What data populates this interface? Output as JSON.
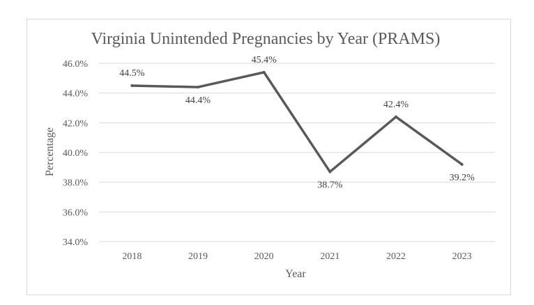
{
  "chart_data": {
    "type": "line",
    "title": "Virginia Unintended Pregnancies by Year (PRAMS)",
    "xlabel": "Year",
    "ylabel": "Percentage",
    "categories": [
      "2018",
      "2019",
      "2020",
      "2021",
      "2022",
      "2023"
    ],
    "series": [
      {
        "values": [
          44.5,
          44.4,
          45.4,
          38.7,
          42.4,
          39.2
        ],
        "labels": [
          "44.5%",
          "44.4%",
          "45.4%",
          "38.7%",
          "42.4%",
          "39.2%"
        ],
        "color": "#595959"
      }
    ],
    "ylim": [
      34,
      46
    ],
    "yticks": [
      34,
      36,
      38,
      40,
      42,
      44,
      46
    ],
    "ytick_labels": [
      "34.0%",
      "36.0%",
      "38.0%",
      "40.0%",
      "42.0%",
      "44.0%",
      "46.0%"
    ],
    "grid": true,
    "legend": "none",
    "gridline_color": "#d9d9d9"
  }
}
